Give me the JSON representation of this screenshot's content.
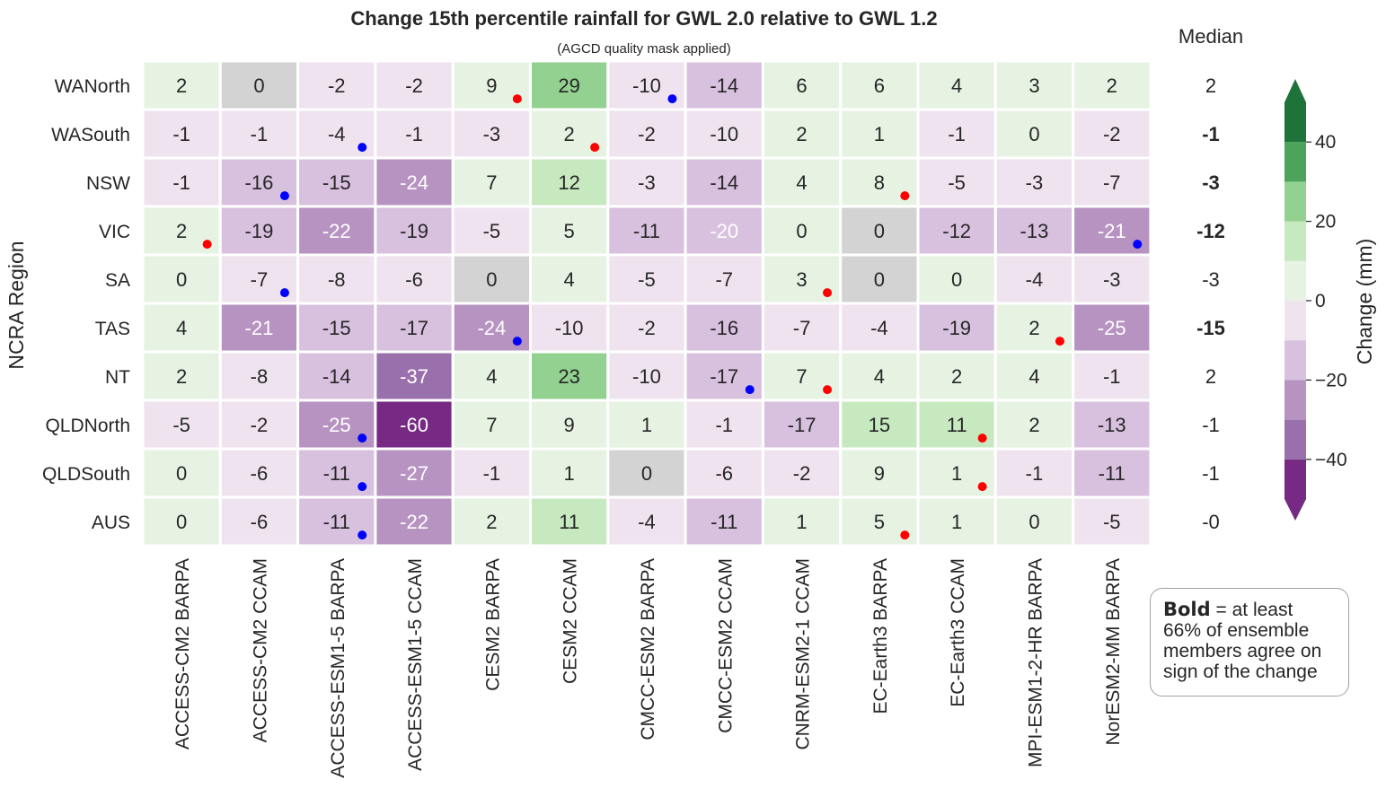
{
  "chart_data": {
    "type": "heatmap",
    "title": "Change 15th percentile rainfall for GWL 2.0 relative to GWL 1.2",
    "subtitle": "(AGCD quality mask applied)",
    "ylabel": "NCRA Region",
    "median_header": "Median",
    "rows": [
      "WANorth",
      "WASouth",
      "NSW",
      "VIC",
      "SA",
      "TAS",
      "NT",
      "QLDNorth",
      "QLDSouth",
      "AUS"
    ],
    "columns": [
      "ACCESS-CM2 BARPA",
      "ACCESS-CM2 CCAM",
      "ACCESS-ESM1-5 BARPA",
      "ACCESS-ESM1-5 CCAM",
      "CESM2 BARPA",
      "CESM2 CCAM",
      "CMCC-ESM2 BARPA",
      "CMCC-ESM2 CCAM",
      "CNRM-ESM2-1 CCAM",
      "EC-Earth3 BARPA",
      "EC-Earth3 CCAM",
      "MPI-ESM1-2-HR BARPA",
      "NorESM2-MM BARPA"
    ],
    "values": [
      [
        2,
        0,
        -2,
        -2,
        9,
        29,
        -10,
        -14,
        6,
        6,
        4,
        3,
        2
      ],
      [
        -1,
        -1,
        -4,
        -1,
        -3,
        2,
        -2,
        -10,
        2,
        1,
        -1,
        0,
        -2
      ],
      [
        -1,
        -16,
        -15,
        -24,
        7,
        12,
        -3,
        -14,
        4,
        8,
        -5,
        -3,
        -7
      ],
      [
        2,
        -19,
        -22,
        -19,
        -5,
        5,
        -11,
        -20,
        0,
        0,
        -12,
        -13,
        -21
      ],
      [
        0,
        -7,
        -8,
        -6,
        0,
        4,
        -5,
        -7,
        3,
        0,
        0,
        -4,
        -3
      ],
      [
        4,
        -21,
        -15,
        -17,
        -24,
        -10,
        -2,
        -16,
        -7,
        -4,
        -19,
        2,
        -25
      ],
      [
        2,
        -8,
        -14,
        -37,
        4,
        23,
        -10,
        -17,
        7,
        4,
        2,
        4,
        -1
      ],
      [
        -5,
        -2,
        -25,
        -60,
        7,
        9,
        1,
        -1,
        -17,
        15,
        11,
        2,
        -13
      ],
      [
        0,
        -6,
        -11,
        -27,
        -1,
        1,
        0,
        -6,
        -2,
        9,
        1,
        -1,
        -11
      ],
      [
        0,
        -6,
        -11,
        -22,
        2,
        11,
        -4,
        -11,
        1,
        5,
        1,
        0,
        -5
      ]
    ],
    "masked_cells": [
      [
        0,
        1
      ],
      [
        3,
        9
      ],
      [
        4,
        4
      ],
      [
        4,
        9
      ],
      [
        8,
        6
      ]
    ],
    "red_markers": [
      [
        0,
        4
      ],
      [
        1,
        5
      ],
      [
        2,
        9
      ],
      [
        3,
        0
      ],
      [
        4,
        8
      ],
      [
        5,
        11
      ],
      [
        6,
        8
      ],
      [
        7,
        10
      ],
      [
        8,
        10
      ],
      [
        9,
        9
      ]
    ],
    "blue_markers": [
      [
        0,
        6
      ],
      [
        1,
        2
      ],
      [
        2,
        1
      ],
      [
        3,
        12
      ],
      [
        4,
        1
      ],
      [
        5,
        4
      ],
      [
        6,
        7
      ],
      [
        7,
        2
      ],
      [
        8,
        2
      ],
      [
        9,
        2
      ]
    ],
    "median_values": [
      "2",
      "-1",
      "-3",
      "-12",
      "-3",
      "-15",
      "2",
      "-1",
      "-1",
      "-0"
    ],
    "median_bold": [
      false,
      true,
      true,
      true,
      false,
      true,
      false,
      false,
      false,
      false
    ],
    "colorbar": {
      "label": "Change (mm)",
      "ticks": [
        "−40",
        "−20",
        "0",
        "20",
        "40"
      ],
      "tick_values": [
        -40,
        -20,
        0,
        20,
        40
      ],
      "range": [
        -50,
        50
      ],
      "bin_edges": [
        -50,
        -40,
        -30,
        -20,
        -10,
        0,
        10,
        20,
        30,
        40,
        50
      ],
      "colors": [
        "#762a83",
        "#9970ab",
        "#b793c2",
        "#d8c0df",
        "#efe3f0",
        "#e6f3e2",
        "#c7e9c0",
        "#92d190",
        "#4ca45a",
        "#1d733a"
      ],
      "extend": "both"
    },
    "mask_color": "#d3d3d3",
    "marker_colors": {
      "red": "#ff0000",
      "blue": "#0000ff"
    },
    "note": {
      "bold_word": "Bold",
      "text": "= at least 66% of ensemble members agree on sign of the change"
    }
  }
}
